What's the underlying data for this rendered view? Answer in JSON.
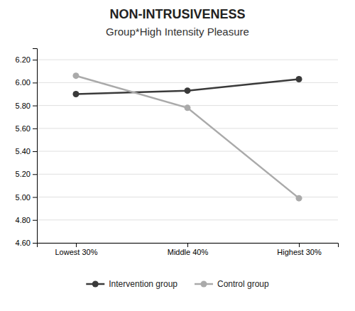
{
  "chart_data": {
    "type": "line",
    "title": "NON-INTRUSIVENESS",
    "subtitle": "Group*High Intensity Pleasure",
    "categories": [
      "Lowest 30%",
      "Middle 40%",
      "Highest 30%"
    ],
    "series": [
      {
        "name": "Intervention group",
        "color": "#3a3a3a",
        "values": [
          5.9,
          5.93,
          6.03
        ]
      },
      {
        "name": "Control group",
        "color": "#aaaaaa",
        "values": [
          6.06,
          5.78,
          4.99
        ]
      }
    ],
    "ylim": [
      4.6,
      6.3
    ],
    "yticks": [
      {
        "value": 4.6,
        "label": "4.60"
      },
      {
        "value": 4.8,
        "label": "4.80"
      },
      {
        "value": 5.0,
        "label": "5.00"
      },
      {
        "value": 5.2,
        "label": "5.20"
      },
      {
        "value": 5.4,
        "label": "5.40"
      },
      {
        "value": 5.6,
        "label": "5.60"
      },
      {
        "value": 5.8,
        "label": "5.80"
      },
      {
        "value": 6.0,
        "label": "6.00"
      },
      {
        "value": 6.2,
        "label": "6.20"
      }
    ],
    "grid": true,
    "legend": "bottom",
    "marker": "circle"
  }
}
